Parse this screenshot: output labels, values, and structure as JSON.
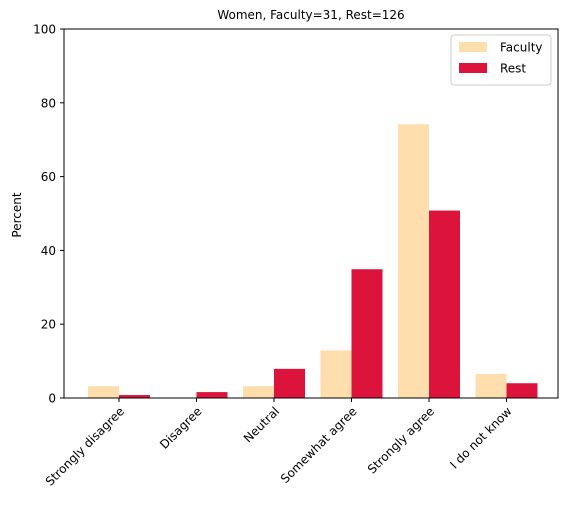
{
  "chart_data": {
    "type": "bar",
    "title": "Women, Faculty=31, Rest=126",
    "xlabel": "",
    "ylabel": "Percent",
    "ylim": [
      0,
      100
    ],
    "yticks": [
      0,
      20,
      40,
      60,
      80,
      100
    ],
    "categories": [
      "Strongly disagree",
      "Disagree",
      "Neutral",
      "Somewhat agree",
      "Strongly agree",
      "I do not know"
    ],
    "series": [
      {
        "name": "Faculty",
        "color": "#FFDEAD",
        "values": [
          3.2,
          0,
          3.2,
          12.9,
          74.2,
          6.5
        ]
      },
      {
        "name": "Rest",
        "color": "#DC143C",
        "values": [
          0.8,
          1.6,
          7.9,
          34.9,
          50.8,
          4.0
        ]
      }
    ],
    "legend": "top-right",
    "grid": false
  }
}
